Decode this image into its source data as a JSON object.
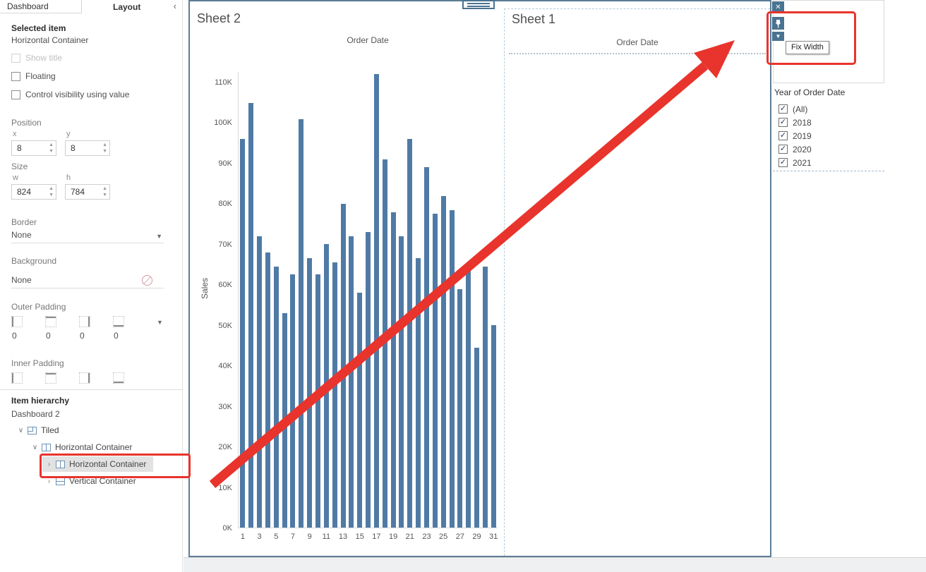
{
  "colors": {
    "bar": "#4f7aa5",
    "accent": "#4a7391",
    "container_border": "#5c7d95",
    "dashed_border": "#b7c9d6",
    "annotation_red": "#e8342c"
  },
  "sidebar": {
    "tabs": [
      {
        "label": "Dashboard",
        "selected": false
      },
      {
        "label": "Layout",
        "selected": true
      }
    ],
    "collapse_glyph": "‹",
    "selected_item_heading": "Selected item",
    "selected_item_value": "Horizontal Container",
    "checkboxes": [
      {
        "label": "Show title",
        "checked": false,
        "disabled": true
      },
      {
        "label": "Floating",
        "checked": false,
        "disabled": false
      },
      {
        "label": "Control visibility using value",
        "checked": false,
        "disabled": false
      }
    ],
    "position": {
      "heading": "Position",
      "x_label": "x",
      "y_label": "y",
      "x_value": "8",
      "y_value": "8"
    },
    "size": {
      "heading": "Size",
      "w_label": "w",
      "h_label": "h",
      "w_value": "824",
      "h_value": "784"
    },
    "border": {
      "heading": "Border",
      "value": "None"
    },
    "background": {
      "heading": "Background",
      "value": "None"
    },
    "outer_padding": {
      "heading": "Outer Padding",
      "values": [
        "0",
        "0",
        "0",
        "0"
      ]
    },
    "inner_padding": {
      "heading": "Inner Padding"
    },
    "item_hierarchy_heading": "Item hierarchy",
    "dashboard_root": "Dashboard 2",
    "tree": [
      {
        "label": "Tiled",
        "depth": 0,
        "expanded": true,
        "icon": "tiled",
        "selected": false,
        "highlight": false
      },
      {
        "label": "Horizontal Container",
        "depth": 1,
        "expanded": true,
        "icon": "horizontal",
        "selected": false,
        "highlight": false
      },
      {
        "label": "Horizontal Container",
        "depth": 2,
        "expanded": false,
        "icon": "horizontal",
        "selected": true,
        "highlight": true
      },
      {
        "label": "Vertical Container",
        "depth": 2,
        "expanded": false,
        "icon": "vertical",
        "selected": false,
        "highlight": false
      }
    ]
  },
  "canvas": {
    "sheet2_title": "Sheet 2",
    "sheet1_title": "Sheet 1",
    "sheet1_axis_title": "Order Date",
    "tooltip": "Fix Width",
    "close_glyph": "✕",
    "caret_glyph": "▼",
    "filter": {
      "title": "Year of Order Date",
      "options": [
        {
          "label": "(All)",
          "checked": true
        },
        {
          "label": "2018",
          "checked": true
        },
        {
          "label": "2019",
          "checked": true
        },
        {
          "label": "2020",
          "checked": true
        },
        {
          "label": "2021",
          "checked": true
        }
      ]
    }
  },
  "chart_data": {
    "type": "bar",
    "title": "Order Date",
    "xlabel": "",
    "ylabel": "Sales",
    "x": [
      1,
      2,
      3,
      4,
      5,
      6,
      7,
      8,
      9,
      10,
      11,
      12,
      13,
      14,
      15,
      16,
      17,
      18,
      19,
      20,
      21,
      22,
      23,
      24,
      25,
      26,
      27,
      28,
      29,
      30,
      31
    ],
    "values": [
      96,
      105,
      72,
      68,
      64.5,
      53,
      62.5,
      101,
      66.5,
      62.5,
      70,
      65.5,
      80,
      72,
      58,
      73,
      112,
      91,
      78,
      72,
      96,
      66.5,
      89,
      77.5,
      82,
      78.5,
      59,
      65,
      44.5,
      64.5,
      50
    ],
    "unit": "K",
    "ylim": [
      0,
      112.6
    ],
    "yticks": [
      0,
      10,
      20,
      30,
      40,
      50,
      60,
      70,
      80,
      90,
      100,
      110
    ],
    "ytick_suffix": "K",
    "xtick_step": 2,
    "grid": false,
    "legend": false,
    "bar_color": "#4f7aa5"
  }
}
